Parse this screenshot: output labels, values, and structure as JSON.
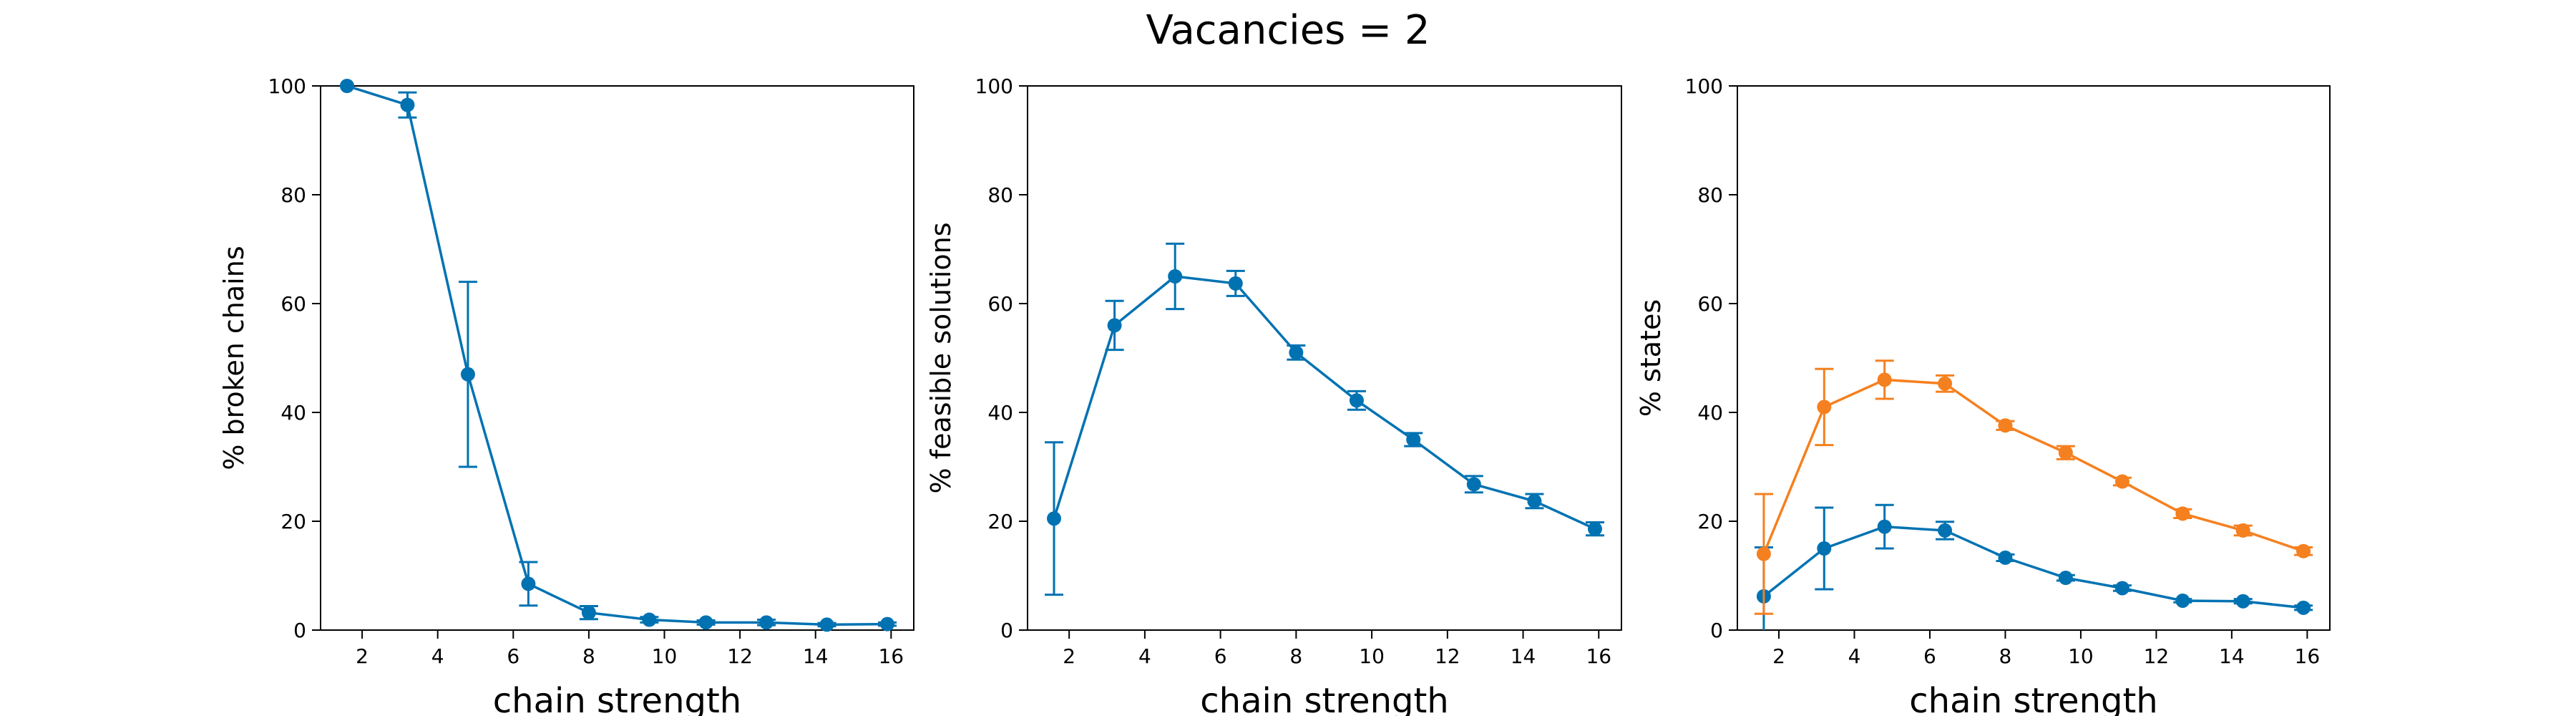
{
  "figure": {
    "title": "Vacancies = 2"
  },
  "chart_data": [
    {
      "type": "line",
      "title": "",
      "xlabel": "chain strength",
      "ylabel": "% broken chains",
      "xlim": [
        0.9,
        16.6
      ],
      "ylim": [
        0,
        100
      ],
      "xticks": [
        2,
        4,
        6,
        8,
        10,
        12,
        14,
        16
      ],
      "yticks": [
        0,
        20,
        40,
        60,
        80,
        100
      ],
      "grid": false,
      "series": [
        {
          "color": "#0072B2",
          "x": [
            1.6,
            3.2,
            4.8,
            6.4,
            8.0,
            9.6,
            11.1,
            12.7,
            14.3,
            15.9
          ],
          "y": [
            100.0,
            96.5,
            47.0,
            8.5,
            3.2,
            1.9,
            1.4,
            1.4,
            1.0,
            1.1
          ],
          "yerr": [
            0.0,
            2.3,
            17.0,
            4.0,
            1.2,
            0.5,
            0.4,
            0.5,
            0.3,
            0.3
          ]
        }
      ]
    },
    {
      "type": "line",
      "title": "",
      "xlabel": "chain strength",
      "ylabel": "% feasible solutions",
      "xlim": [
        0.9,
        16.6
      ],
      "ylim": [
        0,
        100
      ],
      "xticks": [
        2,
        4,
        6,
        8,
        10,
        12,
        14,
        16
      ],
      "yticks": [
        0,
        20,
        40,
        60,
        80,
        100
      ],
      "grid": false,
      "series": [
        {
          "color": "#0072B2",
          "x": [
            1.6,
            3.2,
            4.8,
            6.4,
            8.0,
            9.6,
            11.1,
            12.7,
            14.3,
            15.9
          ],
          "y": [
            20.5,
            56.0,
            65.0,
            63.7,
            51.0,
            42.2,
            35.0,
            26.8,
            23.7,
            18.6
          ],
          "yerr": [
            14.0,
            4.5,
            6.0,
            2.3,
            1.3,
            1.7,
            1.2,
            1.5,
            1.3,
            1.2
          ]
        }
      ]
    },
    {
      "type": "line",
      "title": "",
      "xlabel": "chain strength",
      "ylabel": "% states",
      "xlim": [
        0.9,
        16.6
      ],
      "ylim": [
        0,
        100
      ],
      "xticks": [
        2,
        4,
        6,
        8,
        10,
        12,
        14,
        16
      ],
      "yticks": [
        0,
        20,
        40,
        60,
        80,
        100
      ],
      "grid": false,
      "series": [
        {
          "color": "#0072B2",
          "x": [
            1.6,
            3.2,
            4.8,
            6.4,
            8.0,
            9.6,
            11.1,
            12.7,
            14.3,
            15.9
          ],
          "y": [
            6.2,
            15.0,
            19.0,
            18.3,
            13.3,
            9.6,
            7.7,
            5.4,
            5.3,
            4.1
          ],
          "yerr": [
            9.0,
            7.5,
            4.0,
            1.6,
            0.6,
            0.5,
            0.5,
            0.3,
            0.4,
            0.4
          ]
        },
        {
          "color": "#F5801F",
          "x": [
            1.6,
            3.2,
            4.8,
            6.4,
            8.0,
            9.6,
            11.1,
            12.7,
            14.3,
            15.9
          ],
          "y": [
            14.0,
            41.0,
            46.0,
            45.3,
            37.6,
            32.6,
            27.3,
            21.4,
            18.3,
            14.5
          ],
          "yerr": [
            11.0,
            7.0,
            3.5,
            1.5,
            0.8,
            1.2,
            0.7,
            0.8,
            0.9,
            0.7
          ]
        }
      ]
    }
  ]
}
